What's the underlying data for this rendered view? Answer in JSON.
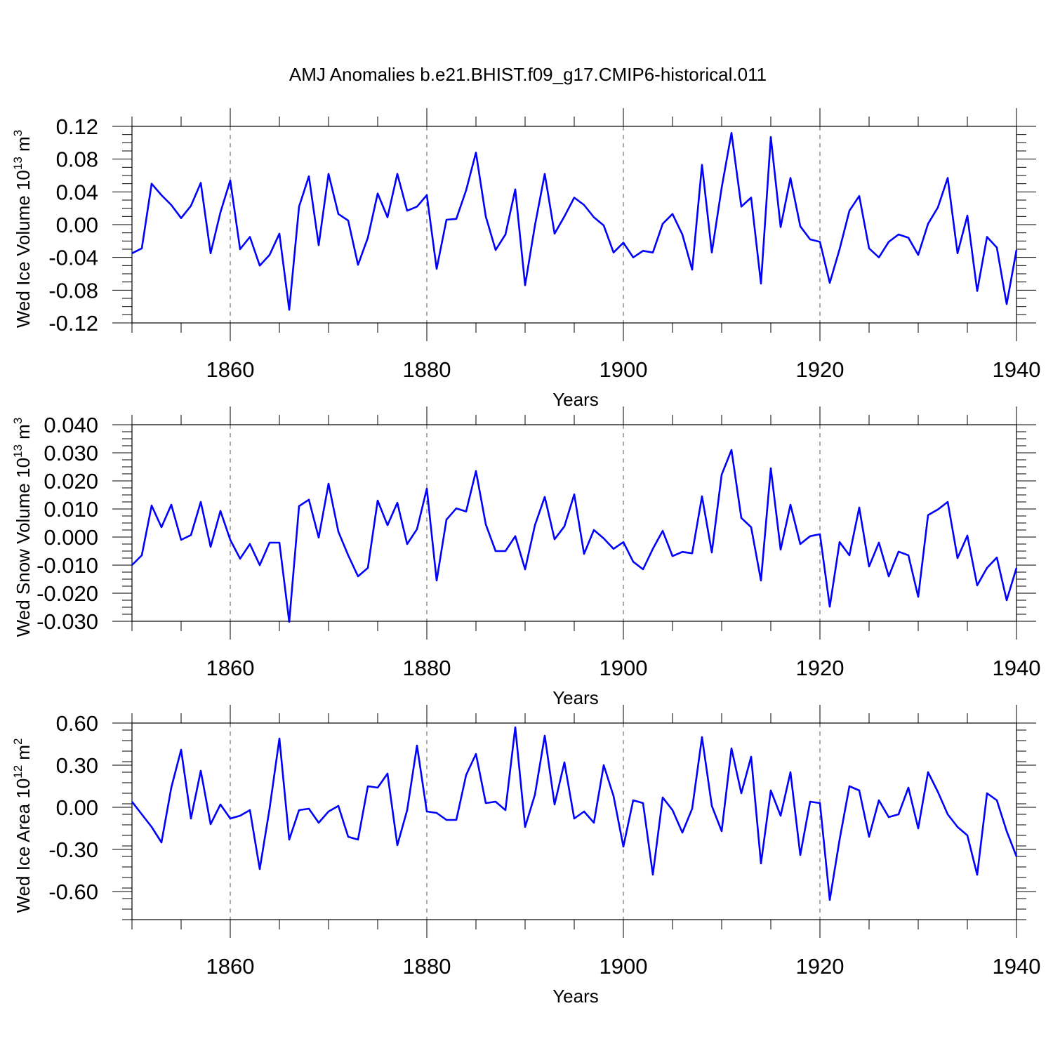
{
  "title": "AMJ Anomalies b.e21.BHIST.f09_g17.CMIP6-historical.011",
  "chart_data": [
    {
      "type": "line",
      "name": "ice-volume",
      "ylabel": "Wed Ice Volume 10",
      "ylabel_exp": "13",
      "ylabel_unit": " m",
      "ylabel_unit_exp": "3",
      "xlabel": "Years",
      "xlim": [
        1850,
        1940
      ],
      "ylim": [
        -0.12,
        0.12
      ],
      "xticks": [
        1860,
        1880,
        1900,
        1920,
        1940
      ],
      "xtick_labels": [
        "1860",
        "1880",
        "1900",
        "1920",
        "1940"
      ],
      "yticks": [
        -0.12,
        -0.08,
        -0.04,
        0.0,
        0.04,
        0.08,
        0.12
      ],
      "ytick_labels": [
        "-0.12",
        "-0.08",
        "-0.04",
        "0.00",
        "0.04",
        "0.08",
        "0.12"
      ],
      "x_start": 1850,
      "color": "#0000ff",
      "values": [
        -0.035,
        -0.029,
        0.05,
        0.036,
        0.024,
        0.008,
        0.023,
        0.051,
        -0.035,
        0.015,
        0.054,
        -0.03,
        -0.015,
        -0.05,
        -0.037,
        -0.011,
        -0.104,
        0.022,
        0.059,
        -0.025,
        0.062,
        0.013,
        0.005,
        -0.049,
        -0.016,
        0.038,
        0.009,
        0.062,
        0.017,
        0.022,
        0.036,
        -0.054,
        0.006,
        0.007,
        0.042,
        0.088,
        0.01,
        -0.031,
        -0.012,
        0.043,
        -0.074,
        -0.001,
        0.062,
        -0.011,
        0.01,
        0.033,
        0.024,
        0.009,
        -0.001,
        -0.034,
        -0.022,
        -0.04,
        -0.032,
        -0.034,
        0.001,
        0.013,
        -0.012,
        -0.055,
        0.073,
        -0.034,
        0.045,
        0.112,
        0.022,
        0.033,
        -0.072,
        0.107,
        -0.003,
        0.057,
        -0.002,
        -0.018,
        -0.021,
        -0.071,
        -0.03,
        0.017,
        0.035,
        -0.029,
        -0.04,
        -0.021,
        -0.012,
        -0.016,
        -0.037,
        0.001,
        0.021,
        0.057,
        -0.035,
        0.011,
        -0.081,
        -0.015,
        -0.028,
        -0.097,
        -0.031
      ]
    },
    {
      "type": "line",
      "name": "snow-volume",
      "ylabel": "Wed Snow Volume 10",
      "ylabel_exp": "13",
      "ylabel_unit": " m",
      "ylabel_unit_exp": "3",
      "xlabel": "Years",
      "xlim": [
        1850,
        1940
      ],
      "ylim": [
        -0.03,
        0.04
      ],
      "xticks": [
        1860,
        1880,
        1900,
        1920,
        1940
      ],
      "xtick_labels": [
        "1860",
        "1880",
        "1900",
        "1920",
        "1940"
      ],
      "yticks": [
        -0.03,
        -0.02,
        -0.01,
        0.0,
        0.01,
        0.02,
        0.03,
        0.04
      ],
      "ytick_labels": [
        "-0.030",
        "-0.020",
        "-0.010",
        "0.000",
        "0.010",
        "0.020",
        "0.030",
        "0.040"
      ],
      "x_start": 1850,
      "color": "#0000ff",
      "values": [
        -0.01,
        -0.0065,
        0.0112,
        0.0035,
        0.0115,
        -0.001,
        0.0007,
        0.0125,
        -0.0035,
        0.0093,
        -0.001,
        -0.0077,
        -0.0025,
        -0.01,
        -0.002,
        -0.002,
        -0.0302,
        0.011,
        0.0133,
        -0.0002,
        0.019,
        0.0019,
        -0.0065,
        -0.014,
        -0.011,
        0.013,
        0.0042,
        0.0122,
        -0.0025,
        0.0028,
        0.0172,
        -0.0155,
        0.0062,
        0.0102,
        0.0091,
        0.0235,
        0.0045,
        -0.005,
        -0.005,
        0.0003,
        -0.0115,
        0.0042,
        0.0143,
        -0.0008,
        0.0038,
        0.0152,
        -0.006,
        0.0025,
        -0.0005,
        -0.0042,
        -0.0018,
        -0.0088,
        -0.0115,
        -0.0042,
        0.0022,
        -0.0068,
        -0.0053,
        -0.0058,
        0.0145,
        -0.0055,
        0.0222,
        0.031,
        0.0068,
        0.0035,
        -0.0155,
        0.0245,
        -0.0045,
        0.0115,
        -0.0025,
        0.0003,
        0.001,
        -0.0248,
        -0.0018,
        -0.0065,
        0.0105,
        -0.0105,
        -0.002,
        -0.014,
        -0.0052,
        -0.0065,
        -0.0213,
        0.0078,
        0.0098,
        0.0125,
        -0.0075,
        0.0005,
        -0.0172,
        -0.011,
        -0.0073,
        -0.0225,
        -0.011
      ]
    },
    {
      "type": "line",
      "name": "ice-area",
      "ylabel": "Wed Ice Area 10",
      "ylabel_exp": "12",
      "ylabel_unit": " m",
      "ylabel_unit_exp": "2",
      "xlabel": "Years",
      "xlim": [
        1850,
        1940
      ],
      "ylim": [
        -0.8,
        0.6
      ],
      "xticks": [
        1860,
        1880,
        1900,
        1920,
        1940
      ],
      "xtick_labels": [
        "1860",
        "1880",
        "1900",
        "1920",
        "1940"
      ],
      "yticks": [
        -0.6,
        -0.3,
        0.0,
        0.3,
        0.6
      ],
      "ytick_labels": [
        "-0.60",
        "-0.30",
        "0.00",
        "0.30",
        "0.60"
      ],
      "x_start": 1850,
      "color": "#0000ff",
      "values": [
        0.04,
        -0.05,
        -0.14,
        -0.25,
        0.14,
        0.41,
        -0.08,
        0.26,
        -0.12,
        0.02,
        -0.08,
        -0.06,
        -0.02,
        -0.44,
        -0.01,
        0.49,
        -0.23,
        -0.02,
        -0.01,
        -0.11,
        -0.03,
        0.01,
        -0.21,
        -0.23,
        0.15,
        0.14,
        0.24,
        -0.27,
        -0.02,
        0.44,
        -0.03,
        -0.04,
        -0.09,
        -0.09,
        0.23,
        0.38,
        0.03,
        0.04,
        -0.02,
        0.57,
        -0.14,
        0.09,
        0.51,
        0.02,
        0.32,
        -0.08,
        -0.03,
        -0.11,
        0.3,
        0.08,
        -0.28,
        0.05,
        0.03,
        -0.48,
        0.07,
        -0.02,
        -0.18,
        -0.01,
        0.5,
        0.01,
        -0.17,
        0.42,
        0.1,
        0.36,
        -0.4,
        0.12,
        -0.06,
        0.25,
        -0.34,
        0.04,
        0.03,
        -0.66,
        -0.23,
        0.15,
        0.12,
        -0.21,
        0.05,
        -0.07,
        -0.05,
        0.14,
        -0.15,
        0.25,
        0.11,
        -0.05,
        -0.14,
        -0.2,
        -0.48,
        0.1,
        0.05,
        -0.17,
        -0.35
      ]
    }
  ]
}
